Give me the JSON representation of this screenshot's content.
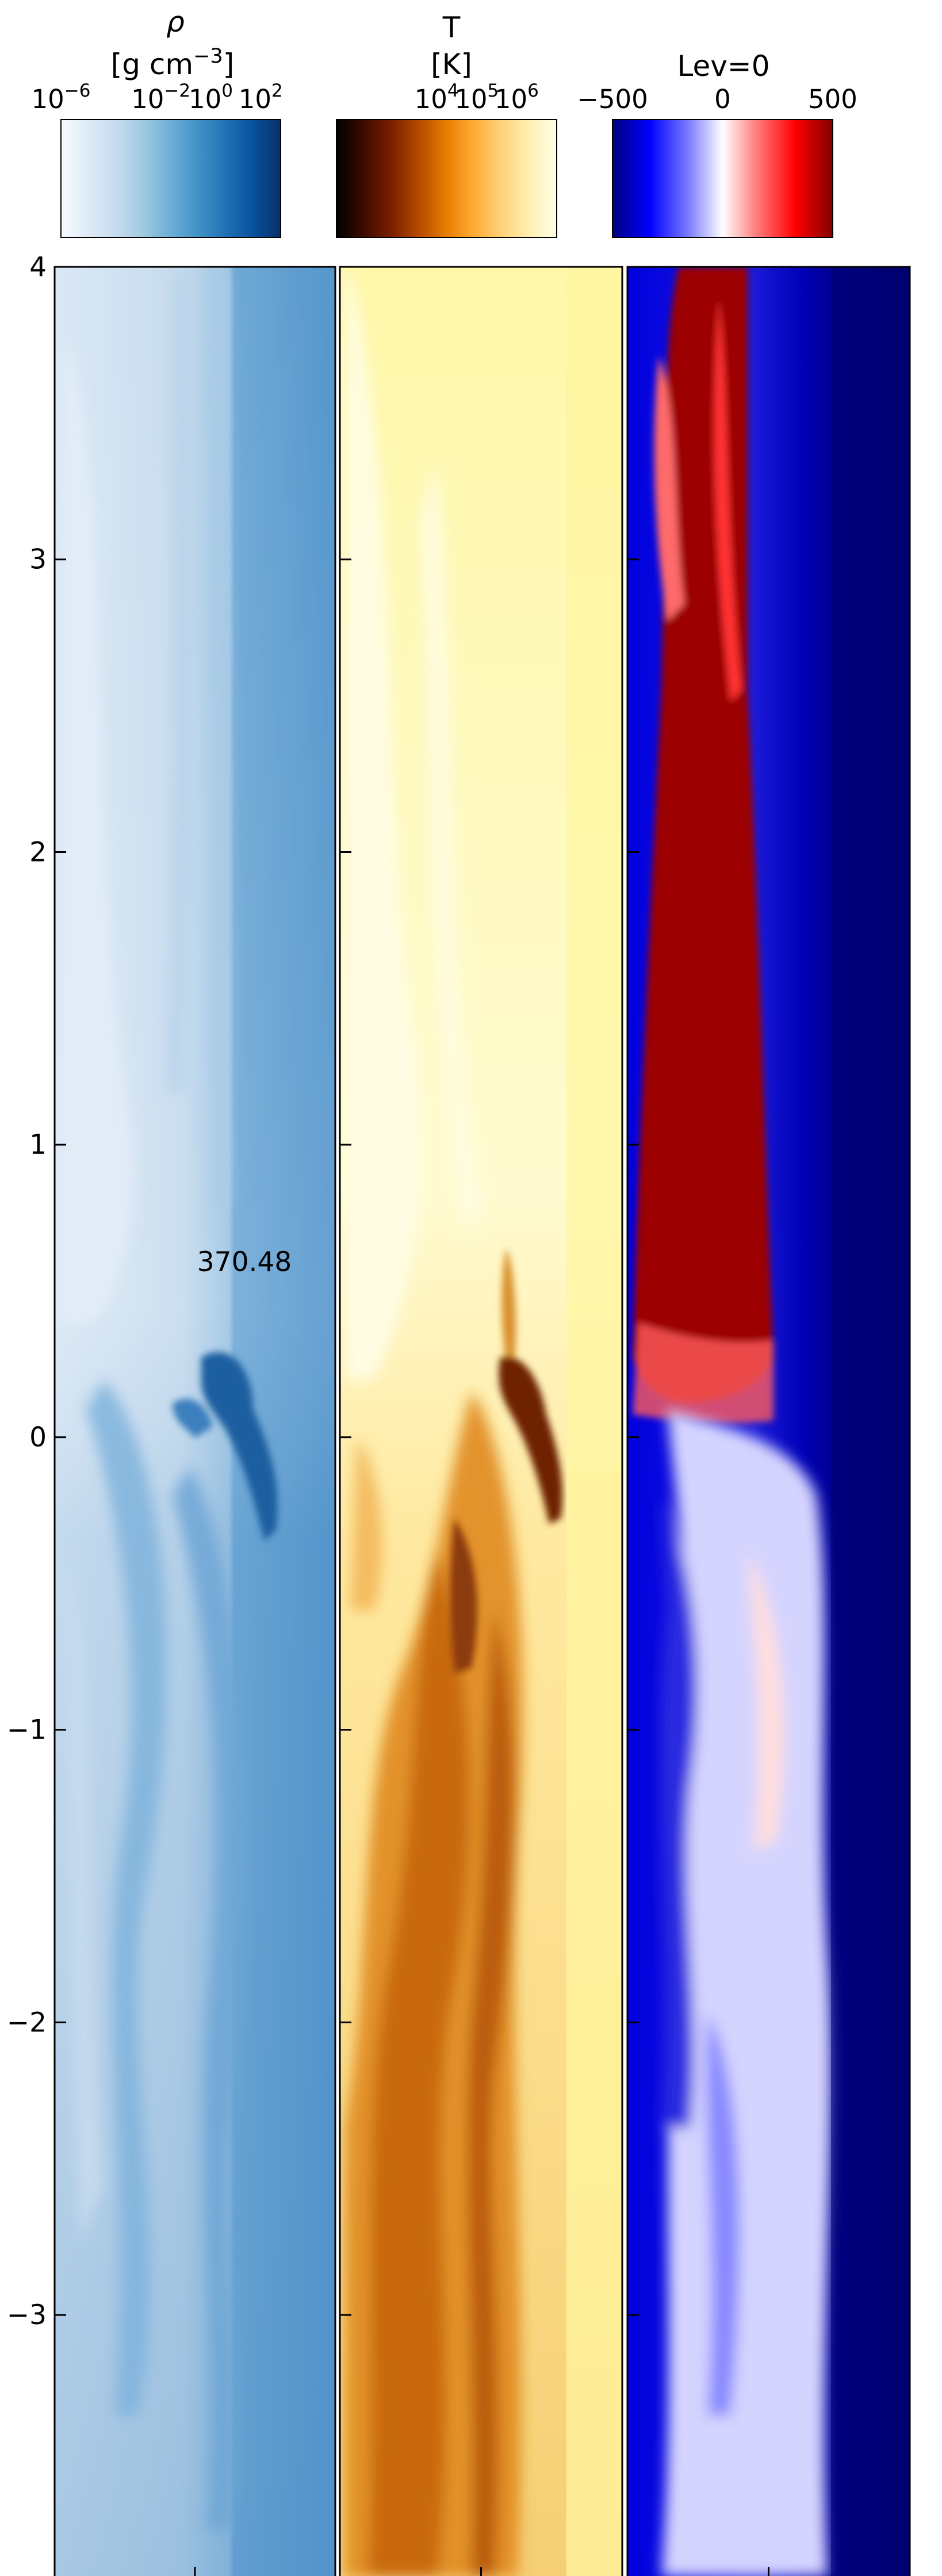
{
  "figure": {
    "annotation": "370.48"
  },
  "chart_data": [
    {
      "type": "heatmap",
      "panel": "density",
      "colorbar": {
        "symbol": "ρ",
        "unit_base": "[g cm",
        "unit_exp": "−3",
        "unit_close": "]",
        "scale": "log",
        "tick_labels": [
          {
            "base": "10",
            "exp": "−6",
            "log10": -6
          },
          {
            "base": "10",
            "exp": "−2",
            "log10": -2
          },
          {
            "base": "10",
            "exp": "0",
            "log10": 0
          },
          {
            "base": "10",
            "exp": "2",
            "log10": 2
          }
        ],
        "range_log10": [
          -6,
          2.8
        ],
        "colormap": [
          "#f7fbff",
          "#deebf7",
          "#c6dbef",
          "#9ecae1",
          "#6baed6",
          "#4292c6",
          "#2171b5",
          "#08519c",
          "#08306b"
        ]
      },
      "xlim": [
        0.0,
        1.0
      ],
      "ylim": [
        -3.9,
        4.0
      ],
      "xticks": [
        "0.0",
        "0.5",
        "1.0"
      ],
      "yticks": [
        "4",
        "3",
        "2",
        "1",
        "0",
        "−1",
        "−2",
        "−3"
      ],
      "ytick_values": [
        4,
        3,
        2,
        1,
        0,
        -1,
        -2,
        -3
      ],
      "grid": false,
      "feature_colors": {
        "background": "#d0e1f2",
        "dense_column": "#5a9bcf",
        "dense_core": "#1c5fa0"
      }
    },
    {
      "type": "heatmap",
      "panel": "temperature",
      "colorbar": {
        "symbol": "T",
        "unit": "[K]",
        "scale": "log",
        "tick_labels": [
          {
            "base": "10",
            "exp": "4",
            "log10": 4
          },
          {
            "base": "10",
            "exp": "5",
            "log10": 5
          },
          {
            "base": "10",
            "exp": "6",
            "log10": 6
          }
        ],
        "range_log10": [
          1.5,
          7.0
        ],
        "colormap": [
          "#000000",
          "#3d0a00",
          "#7a2000",
          "#b84b00",
          "#e67e00",
          "#ffaa33",
          "#ffd27a",
          "#fff0b3",
          "#ffffe6"
        ]
      },
      "xlim": [
        0.0,
        1.0
      ],
      "ylim": [
        -3.9,
        4.0
      ],
      "xticks": [
        "0.0",
        "0.5",
        "1.0"
      ],
      "yticks": [],
      "grid": false,
      "feature_colors": {
        "hot_background": "#fff6a6",
        "cool_gas": "#d97a10",
        "cold_core": "#7a2a05"
      }
    },
    {
      "type": "heatmap",
      "panel": "velocity",
      "colorbar": {
        "label": "Lev=0",
        "scale": "linear",
        "tick_labels": [
          {
            "text": "−500",
            "value": -500
          },
          {
            "text": "0",
            "value": 0
          },
          {
            "text": "500",
            "value": 500
          }
        ],
        "range": [
          -500,
          500
        ],
        "colormap": [
          "#000080",
          "#0000ff",
          "#8080ff",
          "#ffffff",
          "#ff8080",
          "#ff0000",
          "#800000"
        ]
      },
      "xlim": [
        0.0,
        1.0
      ],
      "ylim": [
        -3.9,
        4.0
      ],
      "xticks": [
        "0.0",
        "0.5",
        "1.0"
      ],
      "yticks": [],
      "grid": false,
      "feature_colors": {
        "outflow": "#9a0000",
        "inflow_edge": "#0000c8",
        "inflow_far": "#00006e",
        "mixed": "#c8c8ff"
      }
    }
  ]
}
